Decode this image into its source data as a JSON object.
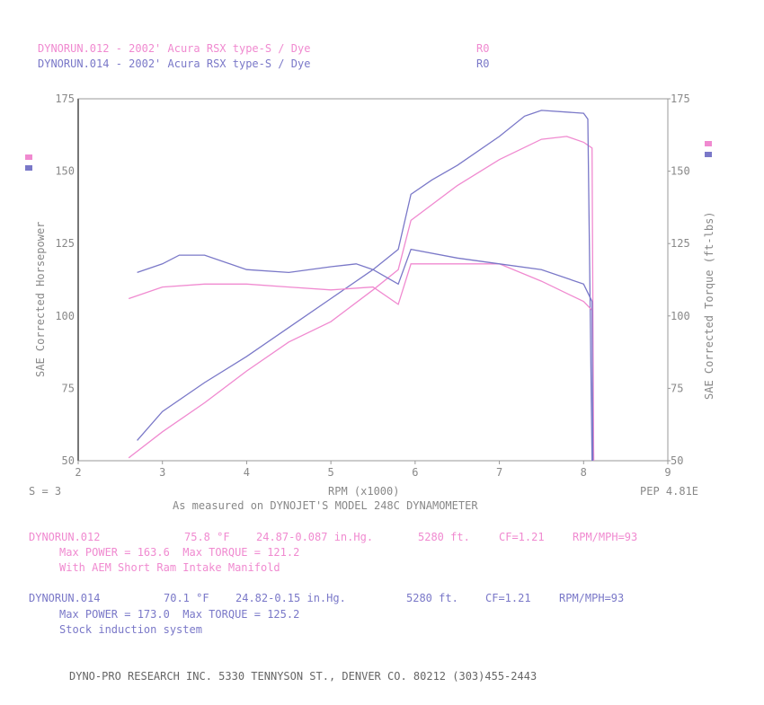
{
  "header": {
    "run1": {
      "label": "DYNORUN.012 - 2002' Acura RSX type-S / Dye",
      "code": "R0"
    },
    "run2": {
      "label": "DYNORUN.014 - 2002' Acura RSX type-S / Dye",
      "code": "R0"
    }
  },
  "colors": {
    "run012": "#f08ad0",
    "run014": "#7a78c8",
    "axis": "#999999"
  },
  "chart_data": {
    "type": "line",
    "xlabel": "RPM (x1000)",
    "ylabel": "SAE Corrected Horsepower",
    "y2label": "SAE Corrected Torque (ft-lbs)",
    "xlim": [
      2,
      9
    ],
    "ylim": [
      50,
      175
    ],
    "xticks": [
      "2",
      "3",
      "4",
      "5",
      "6",
      "7",
      "8",
      "9"
    ],
    "yticks": [
      "50",
      "75",
      "100",
      "125",
      "150",
      "175"
    ],
    "series": [
      {
        "name": "DYNORUN.012 Power",
        "run": "012",
        "x": [
          2.6,
          3,
          3.5,
          4,
          4.5,
          5,
          5.5,
          5.8,
          5.95,
          6.5,
          7,
          7.5,
          7.8,
          8,
          8.1,
          8.12
        ],
        "y": [
          51,
          60,
          70,
          81,
          91,
          98,
          109,
          116,
          133,
          145,
          154,
          161,
          162,
          160,
          158,
          50
        ]
      },
      {
        "name": "DYNORUN.014 Power",
        "run": "014",
        "x": [
          2.7,
          3,
          3.5,
          4,
          4.5,
          5,
          5.5,
          5.8,
          5.95,
          6.2,
          6.5,
          7,
          7.3,
          7.5,
          8,
          8.05,
          8.1
        ],
        "y": [
          57,
          67,
          77,
          86,
          96,
          106,
          116,
          123,
          142,
          147,
          152,
          162,
          169,
          171,
          170,
          168,
          50
        ]
      },
      {
        "name": "DYNORUN.012 Torque",
        "run": "012",
        "x": [
          2.6,
          3,
          3.5,
          4,
          4.5,
          5,
          5.5,
          5.8,
          5.95,
          6.5,
          7,
          7.5,
          8,
          8.1,
          8.12
        ],
        "y": [
          106,
          110,
          111,
          111,
          110,
          109,
          110,
          104,
          118,
          118,
          118,
          112,
          105,
          102,
          50
        ]
      },
      {
        "name": "DYNORUN.014 Torque",
        "run": "014",
        "x": [
          2.7,
          3,
          3.2,
          3.5,
          4,
          4.5,
          5,
          5.3,
          5.5,
          5.8,
          5.95,
          6.5,
          7,
          7.5,
          8,
          8.1,
          8.11
        ],
        "y": [
          115,
          118,
          121,
          121,
          116,
          115,
          117,
          118,
          116,
          111,
          123,
          120,
          118,
          116,
          111,
          105,
          50
        ]
      }
    ]
  },
  "labels": {
    "smoothing": "S = 3",
    "pep": "PEP 4.81E",
    "measured": "As measured on DYNOJET'S MODEL 248C DYNAMOMETER"
  },
  "runs": [
    {
      "name": "DYNORUN.012",
      "temp": "75.8 °F",
      "baro": "24.87-0.087 in.Hg.",
      "alt": "5280 ft.",
      "cf": "CF=1.21",
      "ratio": "RPM/MPH=93",
      "max": "Max POWER = 163.6  Max TORQUE = 121.2",
      "note": "With AEM Short Ram Intake Manifold"
    },
    {
      "name": "DYNORUN.014",
      "temp": "70.1 °F",
      "baro": "24.82-0.15 in.Hg.",
      "alt": "5280 ft.",
      "cf": "CF=1.21",
      "ratio": "RPM/MPH=93",
      "max": "Max POWER = 173.0  Max TORQUE = 125.2",
      "note": "Stock induction system"
    }
  ],
  "footer": "DYNO-PRO RESEARCH INC. 5330 TENNYSON ST., DENVER CO. 80212 (303)455-2443"
}
